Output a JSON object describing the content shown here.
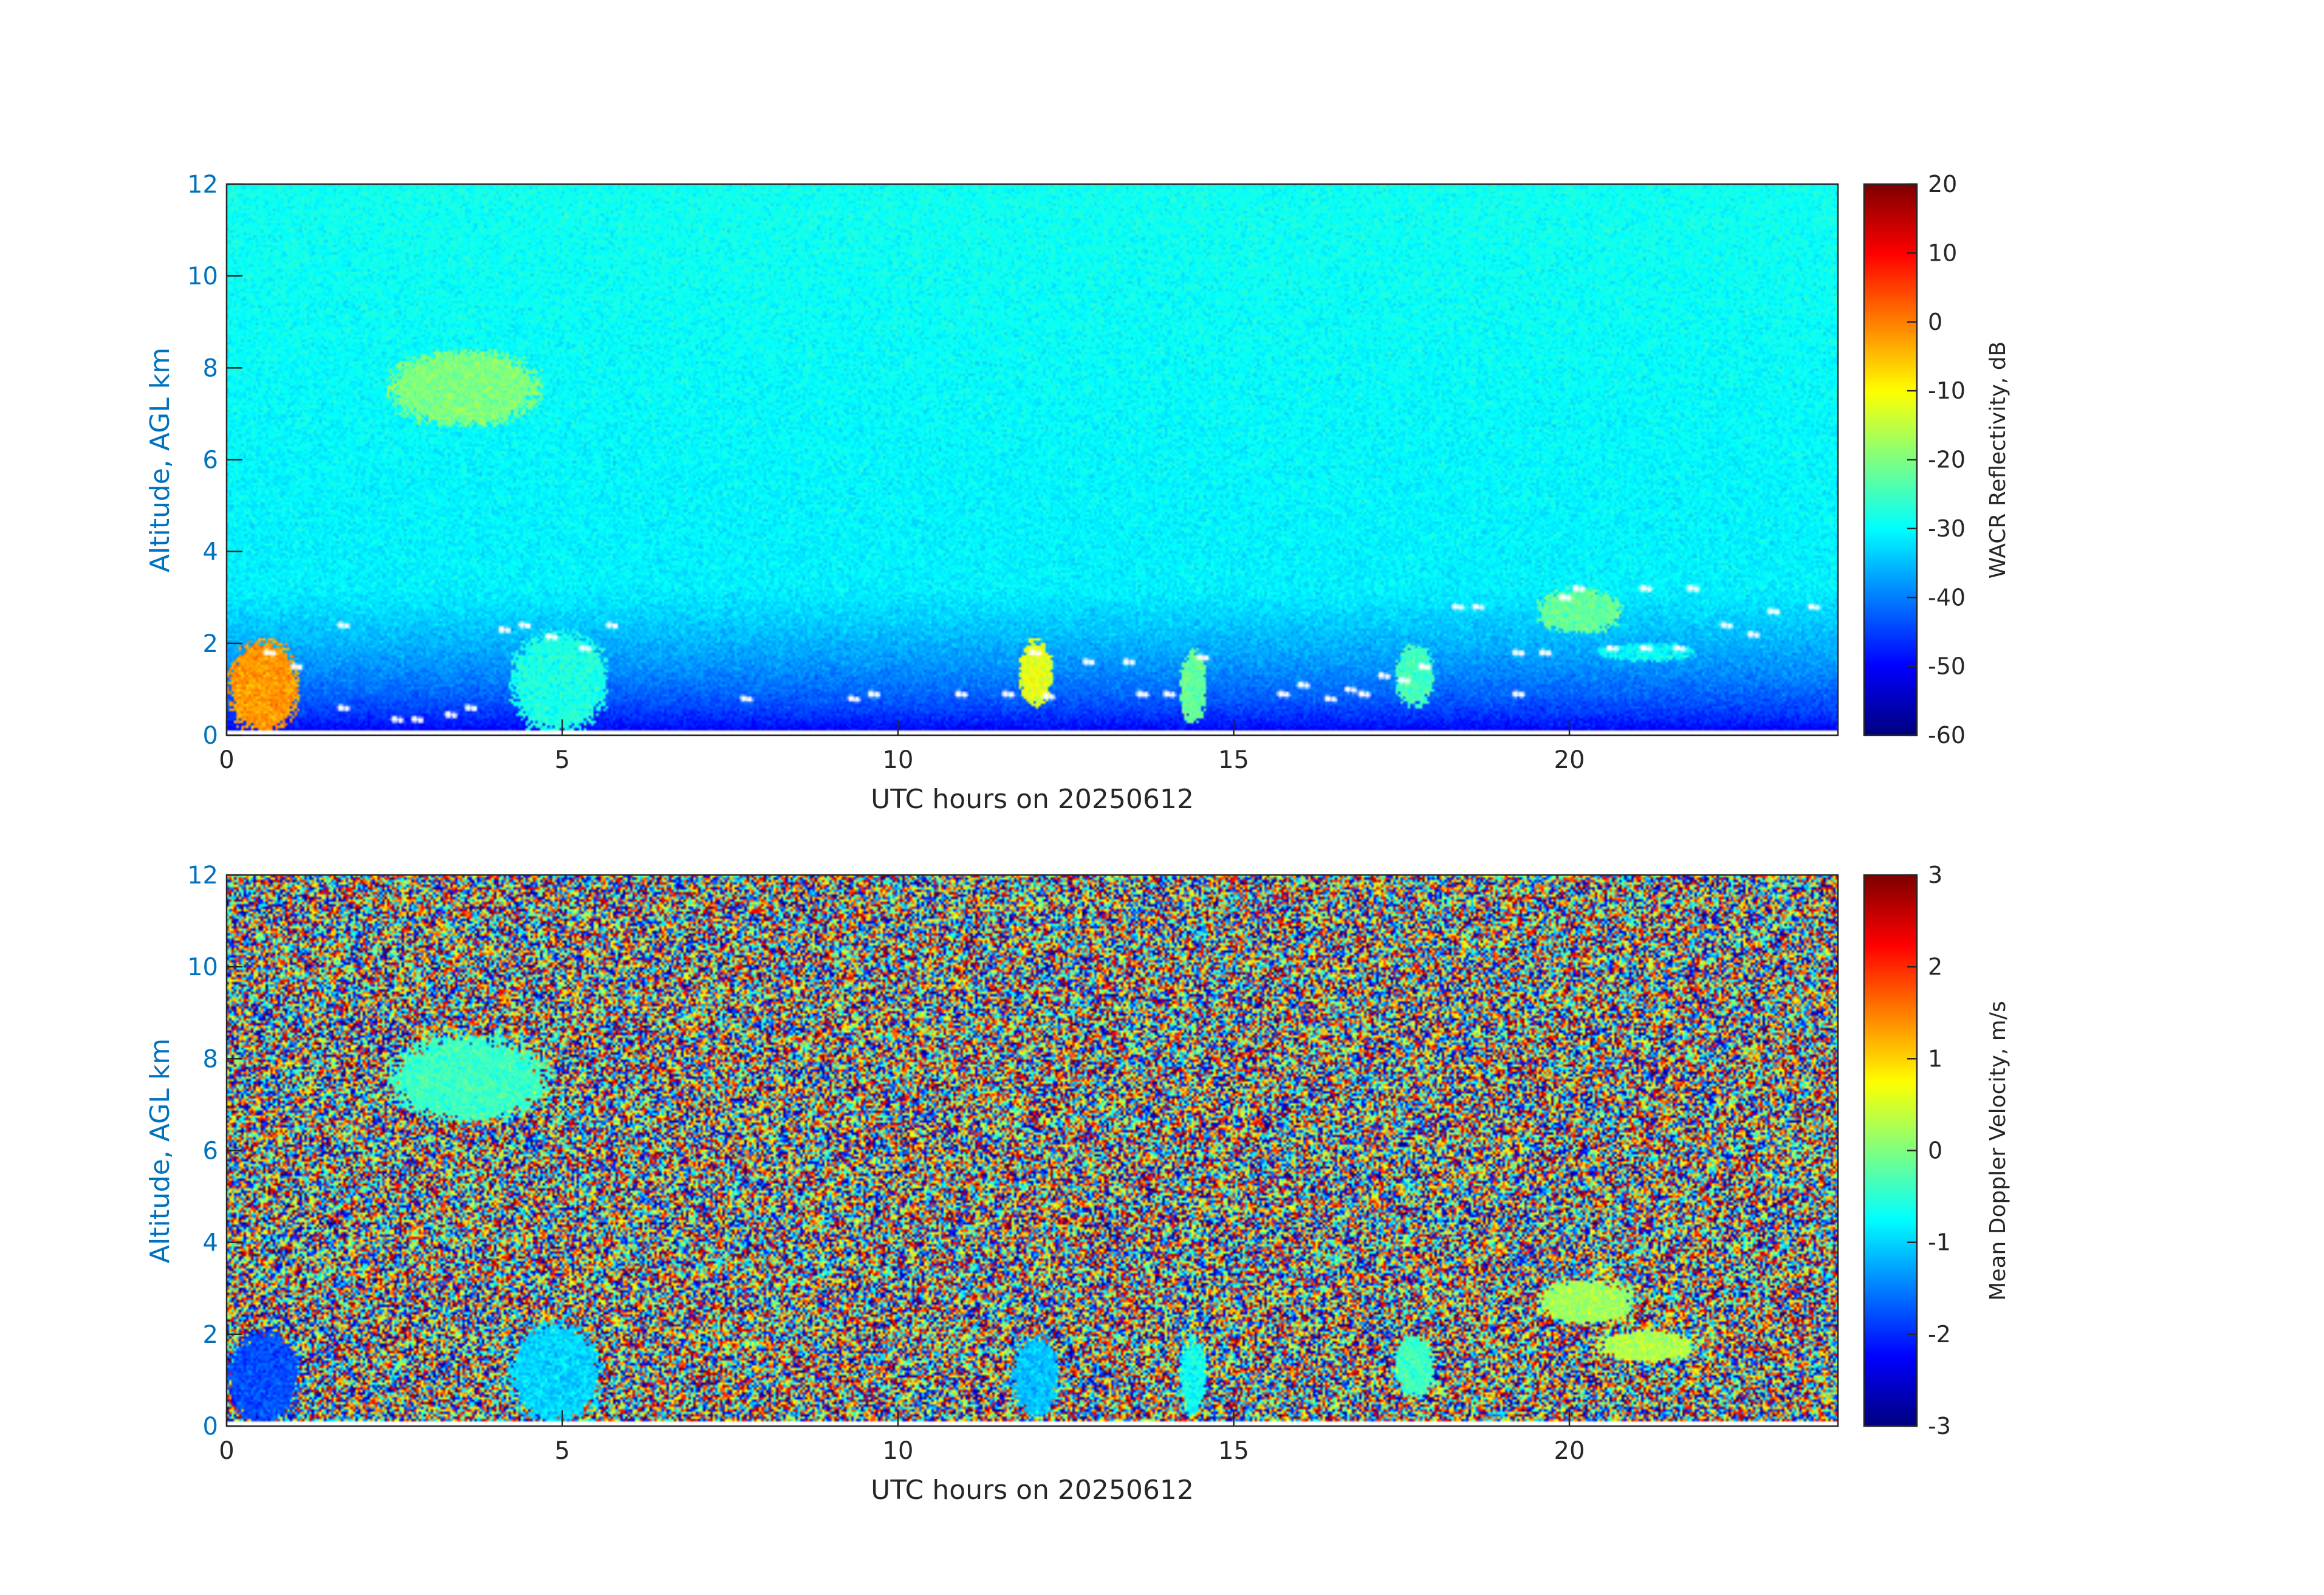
{
  "figure": {
    "background": "#ffffff"
  },
  "chart_data": [
    {
      "type": "heatmap",
      "variable": "reflectivity",
      "xlabel": "UTC hours on 20250612",
      "ylabel": "Altitude, AGL km",
      "xlim": [
        0,
        24
      ],
      "ylim": [
        0,
        12
      ],
      "xticks": [
        "0",
        "5",
        "10",
        "15",
        "20"
      ],
      "xtick_values": [
        0,
        5,
        10,
        15,
        20
      ],
      "yticks": [
        "0",
        "2",
        "4",
        "6",
        "8",
        "10",
        "12"
      ],
      "ytick_values": [
        0,
        2,
        4,
        6,
        8,
        10,
        12
      ],
      "colorbar": {
        "label": "WACR Reflectivity, dB",
        "range": [
          -60,
          20
        ],
        "ticks": [
          "20",
          "10",
          "0",
          "-10",
          "-20",
          "-30",
          "-40",
          "-50",
          "-60"
        ],
        "tick_values": [
          20,
          10,
          0,
          -10,
          -20,
          -30,
          -40,
          -50,
          -60
        ],
        "colormap": "jet"
      },
      "background_noise": {
        "surface_dB": -55,
        "top_dB": -31
      },
      "features": [
        {
          "x": [
            0,
            1.1
          ],
          "y": [
            0,
            2.1
          ],
          "value_dB": -2,
          "desc": "precip column"
        },
        {
          "x": [
            2.4,
            4.7
          ],
          "y": [
            6.7,
            8.4
          ],
          "value_dB": -20
        },
        {
          "x": [
            4.2,
            5.7
          ],
          "y": [
            0,
            2.3
          ],
          "value_dB": -28
        },
        {
          "x": [
            11.8,
            12.3
          ],
          "y": [
            0.6,
            2.1
          ],
          "value_dB": -12
        },
        {
          "x": [
            14.2,
            14.6
          ],
          "y": [
            0.2,
            1.9
          ],
          "value_dB": -22
        },
        {
          "x": [
            17.4,
            18.0
          ],
          "y": [
            0.6,
            2.0
          ],
          "value_dB": -25
        },
        {
          "x": [
            19.5,
            20.8
          ],
          "y": [
            2.2,
            3.2
          ],
          "value_dB": -22
        },
        {
          "x": [
            20.4,
            21.9
          ],
          "y": [
            1.6,
            2.0
          ],
          "value_dB": -30
        }
      ],
      "ceilometer_bases": [
        [
          0.6,
          1.8
        ],
        [
          1.0,
          1.5
        ],
        [
          1.7,
          2.4
        ],
        [
          1.7,
          0.6
        ],
        [
          2.5,
          0.35
        ],
        [
          2.8,
          0.35
        ],
        [
          3.3,
          0.45
        ],
        [
          3.6,
          0.6
        ],
        [
          4.1,
          2.3
        ],
        [
          4.4,
          2.4
        ],
        [
          4.8,
          2.15
        ],
        [
          5.3,
          1.9
        ],
        [
          5.7,
          2.4
        ],
        [
          7.7,
          0.8
        ],
        [
          9.3,
          0.8
        ],
        [
          9.6,
          0.9
        ],
        [
          10.9,
          0.9
        ],
        [
          11.6,
          0.9
        ],
        [
          12.2,
          0.85
        ],
        [
          12.0,
          1.8
        ],
        [
          12.8,
          1.6
        ],
        [
          13.4,
          1.6
        ],
        [
          13.6,
          0.9
        ],
        [
          14.0,
          0.9
        ],
        [
          14.5,
          1.7
        ],
        [
          15.7,
          0.9
        ],
        [
          16.0,
          1.1
        ],
        [
          16.4,
          0.8
        ],
        [
          16.7,
          1.0
        ],
        [
          16.9,
          0.9
        ],
        [
          17.2,
          1.3
        ],
        [
          17.5,
          1.2
        ],
        [
          17.8,
          1.5
        ],
        [
          18.3,
          2.8
        ],
        [
          18.6,
          2.8
        ],
        [
          19.2,
          1.8
        ],
        [
          19.6,
          1.8
        ],
        [
          19.2,
          0.9
        ],
        [
          19.9,
          3.0
        ],
        [
          20.1,
          3.2
        ],
        [
          20.6,
          1.9
        ],
        [
          21.1,
          1.9
        ],
        [
          21.6,
          1.9
        ],
        [
          21.1,
          3.2
        ],
        [
          21.8,
          3.2
        ],
        [
          22.3,
          2.4
        ],
        [
          22.7,
          2.2
        ],
        [
          23.0,
          2.7
        ],
        [
          23.6,
          2.8
        ]
      ]
    },
    {
      "type": "heatmap",
      "variable": "velocity",
      "xlabel": "UTC hours on 20250612",
      "ylabel": "Altitude, AGL km",
      "xlim": [
        0,
        24
      ],
      "ylim": [
        0,
        12
      ],
      "xticks": [
        "0",
        "5",
        "10",
        "15",
        "20"
      ],
      "xtick_values": [
        0,
        5,
        10,
        15,
        20
      ],
      "yticks": [
        "0",
        "2",
        "4",
        "6",
        "8",
        "10",
        "12"
      ],
      "ytick_values": [
        0,
        2,
        4,
        6,
        8,
        10,
        12
      ],
      "colorbar": {
        "label": "Mean Doppler Velocity, m/s",
        "range": [
          -3,
          3
        ],
        "ticks": [
          "3",
          "2",
          "1",
          "0",
          "-1",
          "-2",
          "-3"
        ],
        "tick_values": [
          3,
          2,
          1,
          0,
          -1,
          -2,
          -3
        ],
        "colormap": "jet"
      },
      "background_noise": {
        "uniform_range": [
          -3,
          3
        ]
      },
      "features": [
        {
          "x": [
            0,
            1.1
          ],
          "y": [
            0,
            2.1
          ],
          "value_ms": -1.8
        },
        {
          "x": [
            2.4,
            4.8
          ],
          "y": [
            6.6,
            8.5
          ],
          "value_ms": -0.4
        },
        {
          "x": [
            4.2,
            5.6
          ],
          "y": [
            0,
            2.3
          ],
          "value_ms": -1.0
        },
        {
          "x": [
            11.7,
            12.4
          ],
          "y": [
            0.2,
            2.0
          ],
          "value_ms": -1.1
        },
        {
          "x": [
            14.2,
            14.6
          ],
          "y": [
            0.2,
            1.9
          ],
          "value_ms": -0.7
        },
        {
          "x": [
            17.4,
            18.0
          ],
          "y": [
            0.6,
            2.0
          ],
          "value_ms": -0.4
        },
        {
          "x": [
            19.5,
            21.0
          ],
          "y": [
            2.2,
            3.2
          ],
          "value_ms": 0.2
        },
        {
          "x": [
            20.4,
            21.9
          ],
          "y": [
            1.4,
            2.1
          ],
          "value_ms": 0.3
        }
      ]
    }
  ]
}
